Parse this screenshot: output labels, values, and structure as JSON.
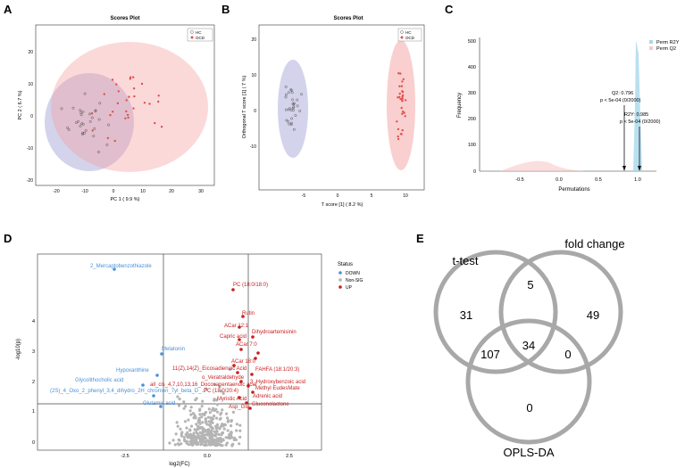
{
  "panels": {
    "a": {
      "letter": "A",
      "title": "Scores Plot",
      "xlabel": "PC 1 ( 9.9 %)",
      "ylabel": "PC 2 ( 6.7 %)",
      "legend": [
        "HC",
        "OCD"
      ],
      "xticks": [
        "-20",
        "-10",
        "0",
        "10",
        "20",
        "30"
      ],
      "yticks": [
        "-20",
        "-10",
        "0",
        "10",
        "20"
      ]
    },
    "b": {
      "letter": "B",
      "title": "Scores Plot",
      "xlabel": "T score [1] ( 8.2 %)",
      "ylabel": "Orthogonal T score [1] ( 7 %)",
      "legend": [
        "HC",
        "OCD"
      ],
      "xticks": [
        "-5",
        "0",
        "5",
        "10"
      ],
      "yticks": [
        "-10",
        "0",
        "10",
        "20"
      ]
    },
    "c": {
      "letter": "C",
      "xlabel": "Permutations",
      "ylabel": "Frequency",
      "legend": [
        "Perm R2Y",
        "Perm Q2"
      ],
      "xticks": [
        "-0.5",
        "0.0",
        "0.5",
        "1.0"
      ],
      "yticks": [
        "0",
        "100",
        "200",
        "300",
        "400",
        "500"
      ],
      "q2_line1": "Q2: 0.796",
      "q2_line2": "p < 5e-04 (0/2000)",
      "r2y_line1": "R2Y: 0.985",
      "r2y_line2": "p < 5e-04 (0/2000)"
    },
    "d": {
      "letter": "D",
      "xlabel": "log2(FC)",
      "ylabel": "-log10(p)",
      "legend_title": "Status",
      "legend": [
        "DOWN",
        "Non-SIG",
        "UP"
      ],
      "xticks": [
        "-2.5",
        "0.0",
        "2.5"
      ],
      "yticks": [
        "0",
        "1",
        "2",
        "3",
        "4"
      ],
      "labels_down": [
        "2_Mercaptobenzothiazole",
        "Melatonin",
        "Hypoxanthine",
        "Glycolithocholic acid",
        "(2S)_4_Oxo_2_phenyl_3,4_dihydro_2H_chromen_7yl_beta_D_...",
        "Glutamic acid"
      ],
      "labels_up": [
        "PC (18:0/18:0)",
        "Rutin",
        "ACar 12:1",
        "Dihydroartemisinin",
        "Capric acid",
        "ACar 7:0",
        "ACar 18:0",
        "11(Z),14(Z)_Eicosadienoic Acid",
        "FAHFA (18:1/20:3)",
        "o_Veratraldehyde",
        "all_cis_4,7,10,13,16_Docosapentaenoic acid",
        "3_Hydroxybenzoic acid",
        "PC (18:0/20:4)",
        "Methyl EudesMate",
        "Myristic Acid",
        "Adrenic acid",
        "Asp_Glu",
        "Gluconolactone"
      ]
    },
    "e": {
      "letter": "E",
      "set1": "t-test",
      "set2": "fold change",
      "set3": "OPLS-DA",
      "counts": {
        "t_only": "31",
        "t_fc": "5",
        "fc_only": "49",
        "t_opls": "107",
        "all": "34",
        "fc_opls": "0",
        "opls_only": "0"
      }
    }
  },
  "colors": {
    "hc": "#8080c8",
    "ocd": "#e05050",
    "down": "#4a90d9",
    "up": "#c81e1e",
    "nonsig": "#b4b4b4",
    "venn": "#a8a8a8"
  }
}
